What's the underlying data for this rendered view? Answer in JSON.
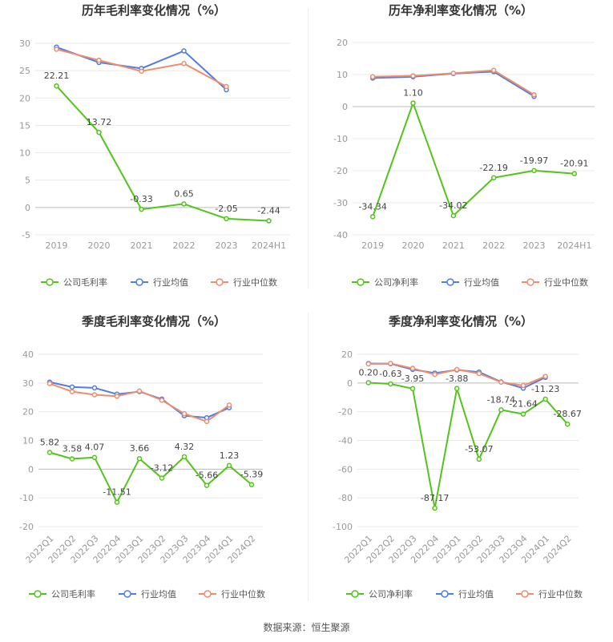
{
  "colors": {
    "company": "#52c41a",
    "industry_avg": "#4e7ee5",
    "industry_median": "#f08c6e",
    "grid": "#e8e8e8",
    "axis_text": "#999999",
    "label_text": "#444444",
    "title_text": "#333333"
  },
  "source": "数据来源：恒生聚源",
  "chart_data": [
    {
      "type": "line",
      "title": "历年毛利率变化情况（%）",
      "categories": [
        "2019",
        "2020",
        "2021",
        "2022",
        "2023",
        "2024H1"
      ],
      "ylim": [
        -5,
        30
      ],
      "yticks": [
        -5,
        0,
        5,
        10,
        15,
        20,
        25,
        30
      ],
      "series": [
        {
          "name": "公司毛利率",
          "key": "company",
          "values": [
            22.21,
            13.72,
            -0.33,
            0.65,
            -2.05,
            -2.44
          ],
          "labels": [
            "22.21",
            "13.72",
            "-0.33",
            "0.65",
            "-2.05",
            "-2.44"
          ]
        },
        {
          "name": "行业均值",
          "key": "industry_avg",
          "values": [
            29.3,
            26.5,
            25.4,
            28.6,
            21.5,
            null
          ]
        },
        {
          "name": "行业中位数",
          "key": "industry_median",
          "values": [
            28.9,
            26.9,
            24.9,
            26.3,
            22.1,
            null
          ]
        }
      ],
      "legend": "bottom",
      "grid": true
    },
    {
      "type": "line",
      "title": "历年净利率变化情况（%）",
      "categories": [
        "2019",
        "2020",
        "2021",
        "2022",
        "2023",
        "2024H1"
      ],
      "ylim": [
        -40,
        20
      ],
      "yticks": [
        -40,
        -30,
        -20,
        -10,
        0,
        10,
        20
      ],
      "series": [
        {
          "name": "公司净利率",
          "key": "company",
          "values": [
            -34.34,
            1.1,
            -34.02,
            -22.19,
            -19.97,
            -20.91
          ],
          "labels": [
            "-34.34",
            "1.10",
            "-34.02",
            "-22.19",
            "-19.97",
            "-20.91"
          ]
        },
        {
          "name": "行业均值",
          "key": "industry_avg",
          "values": [
            8.9,
            9.3,
            10.3,
            10.9,
            3.2,
            null
          ]
        },
        {
          "name": "行业中位数",
          "key": "industry_median",
          "values": [
            9.3,
            9.6,
            10.4,
            11.3,
            3.7,
            null
          ]
        }
      ],
      "legend": "bottom",
      "grid": true
    },
    {
      "type": "line",
      "title": "季度毛利率变化情况（%）",
      "categories": [
        "2022Q1",
        "2022Q2",
        "2022Q3",
        "2022Q4",
        "2023Q1",
        "2023Q2",
        "2023Q3",
        "2023Q4",
        "2024Q1",
        "2024Q2"
      ],
      "ylim": [
        -20,
        40
      ],
      "yticks": [
        -20,
        -10,
        0,
        10,
        20,
        30,
        40
      ],
      "series": [
        {
          "name": "公司毛利率",
          "key": "company",
          "values": [
            5.82,
            3.58,
            4.07,
            -11.51,
            3.66,
            -3.12,
            4.32,
            -5.66,
            1.23,
            -5.39
          ],
          "labels": [
            "5.82",
            "3.58",
            "4.07",
            "-11.51",
            "3.66",
            "-3.12",
            "4.32",
            "-5.66",
            "1.23",
            "-5.39"
          ]
        },
        {
          "name": "行业均值",
          "key": "industry_avg",
          "values": [
            30.3,
            28.6,
            28.3,
            26.1,
            27.0,
            24.4,
            18.6,
            17.9,
            21.4,
            null
          ]
        },
        {
          "name": "行业中位数",
          "key": "industry_median",
          "values": [
            29.8,
            27.0,
            25.9,
            25.4,
            27.2,
            24.0,
            19.3,
            16.6,
            22.3,
            null
          ]
        }
      ],
      "legend": "bottom",
      "grid": true
    },
    {
      "type": "line",
      "title": "季度净利率变化情况（%）",
      "categories": [
        "2022Q1",
        "2022Q2",
        "2022Q3",
        "2022Q4",
        "2023Q1",
        "2023Q2",
        "2023Q3",
        "2023Q4",
        "2024Q1",
        "2024Q2"
      ],
      "ylim": [
        -100,
        20
      ],
      "yticks": [
        -100,
        -80,
        -60,
        -40,
        -20,
        0,
        20
      ],
      "series": [
        {
          "name": "公司净利率",
          "key": "company",
          "values": [
            0.2,
            -0.63,
            -3.95,
            -87.17,
            -3.88,
            -53.07,
            -18.74,
            -21.64,
            -11.23,
            -28.67
          ],
          "labels": [
            "0.20",
            "-0.63",
            "-3.95",
            "-87.17",
            "-3.88",
            "-53.07",
            "-18.74",
            "-21.64",
            "-11.23",
            "-28.67"
          ]
        },
        {
          "name": "行业均值",
          "key": "industry_avg",
          "values": [
            13.6,
            13.4,
            9.4,
            6.9,
            9.1,
            7.6,
            0.8,
            -3.6,
            3.9,
            null
          ]
        },
        {
          "name": "行业中位数",
          "key": "industry_median",
          "values": [
            13.3,
            13.6,
            10.2,
            5.9,
            9.4,
            6.6,
            0.6,
            -1.8,
            4.6,
            null
          ]
        }
      ],
      "legend": "bottom",
      "grid": true
    }
  ]
}
